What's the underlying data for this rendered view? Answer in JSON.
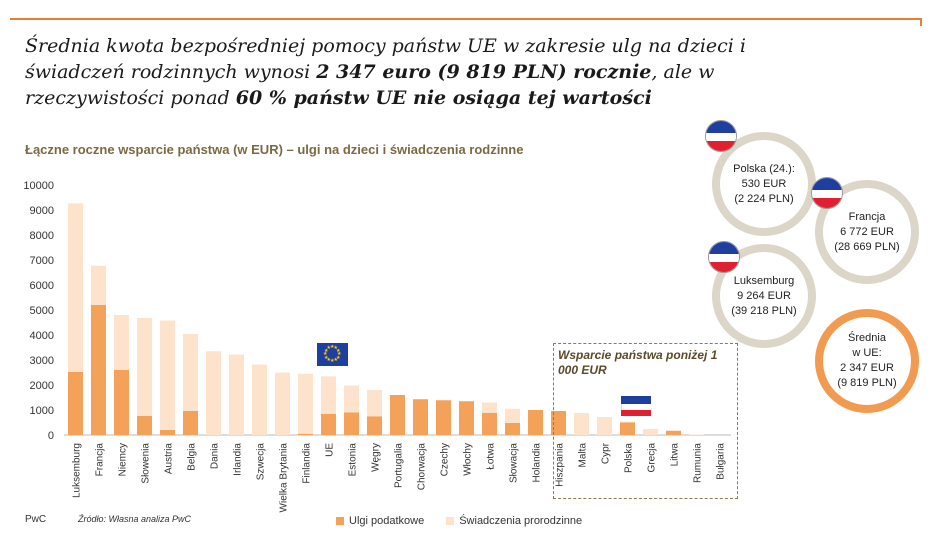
{
  "header": {
    "title_part1": "Średnia kwota bezpośredniej pomocy państw UE w zakresie ulg na dzieci i świadczeń rodzinnych wynosi ",
    "title_bold1": "2 347 euro (9 819 PLN) rocznie",
    "title_part2": ", ale w rzeczywistości ponad ",
    "title_bold2": "60 % państw UE nie osiąga tej wartości"
  },
  "colors": {
    "accent": "#e57f3a",
    "tax": "#f4a25a",
    "benefits": "#fde3cc",
    "circle_border": "#dcd6c9",
    "avg_border": "#f29a4f"
  },
  "chart_data": {
    "type": "bar",
    "stacked": true,
    "title": "Łączne roczne wsparcie państwa (w EUR) – ulgi na dzieci i świadczenia rodzinne",
    "ylim": [
      0,
      10000
    ],
    "yticks": [
      0,
      1000,
      2000,
      3000,
      4000,
      5000,
      6000,
      7000,
      8000,
      9000,
      10000
    ],
    "grid": false,
    "legend_position": "bottom",
    "categories": [
      "Luksemburg",
      "Francja",
      "Niemcy",
      "Słowenia",
      "Austria",
      "Belgia",
      "Dania",
      "Irlandia",
      "Szwecja",
      "Wielka Brytania",
      "Finlandia",
      "UE",
      "Estonia",
      "Węgry",
      "Portugalia",
      "Chorwacja",
      "Czechy",
      "Włochy",
      "Łotwa",
      "Słowacja",
      "Holandia",
      "Hiszpania",
      "Malta",
      "Cypr",
      "Polska",
      "Grecja",
      "Litwa",
      "Rumunia",
      "Bułgaria"
    ],
    "series": [
      {
        "name": "Ulgi podatkowe",
        "values": [
          2520,
          5200,
          2600,
          760,
          200,
          960,
          0,
          0,
          0,
          0,
          50,
          850,
          900,
          750,
          1600,
          1430,
          1390,
          1350,
          890,
          480,
          1000,
          960,
          0,
          0,
          500,
          0,
          170,
          0,
          0
        ]
      },
      {
        "name": "Świadczenia prorodzinne",
        "values": [
          6744,
          1572,
          2200,
          3920,
          4380,
          3080,
          3350,
          3220,
          2820,
          2500,
          2400,
          1497,
          1080,
          1050,
          0,
          0,
          0,
          0,
          410,
          570,
          0,
          0,
          880,
          720,
          30,
          240,
          0,
          20,
          0
        ]
      }
    ],
    "annotation_box": "Wsparcie państwa poniżej 1 000 EUR"
  },
  "bubbles": [
    {
      "line1": "Polska (24.):",
      "line2": "530 EUR",
      "line3": "(2 224 PLN)"
    },
    {
      "line1": "Francja",
      "line2": "6 772 EUR",
      "line3": "(28 669 PLN)"
    },
    {
      "line1": "Luksemburg",
      "line2": "9 264 EUR",
      "line3": "(39 218 PLN)"
    },
    {
      "line1": "Średnia",
      "line1b": "w UE:",
      "line2": "2 347 EUR",
      "line3": "(9 819 PLN)"
    }
  ],
  "footer": {
    "brand": "PwC",
    "source": "Źródło: Własna analiza PwC"
  }
}
